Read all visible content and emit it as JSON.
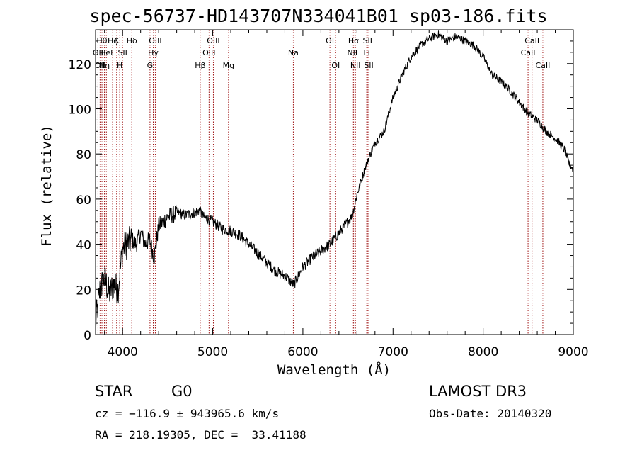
{
  "title": "spec-56737-HD143707N334041B01_sp03-186.fits",
  "footer": {
    "object_class": "STAR",
    "subclass": "G0",
    "survey": "LAMOST DR3",
    "cz": "cz = −116.9 ± 943965.6 km/s",
    "obs_date": "Obs-Date: 20140320",
    "coords": "RA = 218.19305, DEC =  33.41188"
  },
  "chart_data": {
    "type": "line",
    "title": "spec-56737-HD143707N334041B01_sp03-186.fits",
    "xlabel": "Wavelength (Å)",
    "ylabel": "Flux (relative)",
    "xlim": [
      3700,
      9000
    ],
    "ylim": [
      0,
      135
    ],
    "xticks": [
      4000,
      5000,
      6000,
      7000,
      8000,
      9000
    ],
    "yticks": [
      0,
      20,
      40,
      60,
      80,
      100,
      120
    ],
    "series": [
      {
        "name": "flux",
        "x": [
          3700,
          3750,
          3800,
          3850,
          3900,
          3950,
          4000,
          4050,
          4100,
          4150,
          4200,
          4250,
          4300,
          4350,
          4400,
          4450,
          4500,
          4600,
          4700,
          4800,
          4850,
          4900,
          5000,
          5100,
          5200,
          5300,
          5400,
          5500,
          5600,
          5700,
          5800,
          5900,
          6000,
          6100,
          6200,
          6300,
          6400,
          6500,
          6550,
          6600,
          6700,
          6800,
          6900,
          7000,
          7100,
          7200,
          7300,
          7400,
          7500,
          7600,
          7700,
          7800,
          7900,
          8000,
          8100,
          8200,
          8300,
          8400,
          8500,
          8600,
          8700,
          8800,
          8900,
          8950,
          9000
        ],
        "y": [
          5,
          20,
          25,
          18,
          22,
          20,
          38,
          40,
          42,
          40,
          45,
          40,
          42,
          34,
          48,
          50,
          52,
          54,
          53,
          54,
          55,
          52,
          50,
          47,
          46,
          44,
          40,
          36,
          32,
          28,
          26,
          22,
          30,
          34,
          37,
          40,
          45,
          50,
          53,
          62,
          75,
          85,
          90,
          105,
          115,
          123,
          128,
          131,
          133,
          130,
          132,
          130,
          128,
          123,
          115,
          112,
          108,
          103,
          98,
          95,
          90,
          87,
          82,
          76,
          73
        ]
      }
    ],
    "lines": [
      {
        "wavelength": 3727,
        "label": "OII",
        "row": 2
      },
      {
        "wavelength": 3750,
        "label": "OII",
        "row": 3
      },
      {
        "wavelength": 3771,
        "label": "Hθ",
        "row": 1
      },
      {
        "wavelength": 3798,
        "label": "Hη",
        "row": 3
      },
      {
        "wavelength": 3820,
        "label": "HeI",
        "row": 2
      },
      {
        "wavelength": 3889,
        "label": "Hζ",
        "row": 1
      },
      {
        "wavelength": 3934,
        "label": "K",
        "row": 1
      },
      {
        "wavelength": 3968,
        "label": "H",
        "row": 3
      },
      {
        "wavelength": 4000,
        "label": "SII",
        "row": 2
      },
      {
        "wavelength": 4102,
        "label": "Hδ",
        "row": 1
      },
      {
        "wavelength": 4304,
        "label": "G",
        "row": 3
      },
      {
        "wavelength": 4340,
        "label": "Hγ",
        "row": 2
      },
      {
        "wavelength": 4363,
        "label": "OIII",
        "row": 1
      },
      {
        "wavelength": 4861,
        "label": "Hβ",
        "row": 3
      },
      {
        "wavelength": 4959,
        "label": "OIII",
        "row": 2
      },
      {
        "wavelength": 5007,
        "label": "OIII",
        "row": 1
      },
      {
        "wavelength": 5175,
        "label": "Mg",
        "row": 3
      },
      {
        "wavelength": 5894,
        "label": "Na",
        "row": 2
      },
      {
        "wavelength": 6300,
        "label": "OI",
        "row": 1
      },
      {
        "wavelength": 6364,
        "label": "OI",
        "row": 3
      },
      {
        "wavelength": 6548,
        "label": "NII",
        "row": 2
      },
      {
        "wavelength": 6563,
        "label": "Hα",
        "row": 1
      },
      {
        "wavelength": 6583,
        "label": "NII",
        "row": 3
      },
      {
        "wavelength": 6708,
        "label": "Li",
        "row": 2
      },
      {
        "wavelength": 6717,
        "label": "SII",
        "row": 1
      },
      {
        "wavelength": 6731,
        "label": "SII",
        "row": 3
      },
      {
        "wavelength": 8498,
        "label": "CaII",
        "row": 2
      },
      {
        "wavelength": 8542,
        "label": "CaII",
        "row": 1
      },
      {
        "wavelength": 8662,
        "label": "CaII",
        "row": 3
      }
    ]
  }
}
